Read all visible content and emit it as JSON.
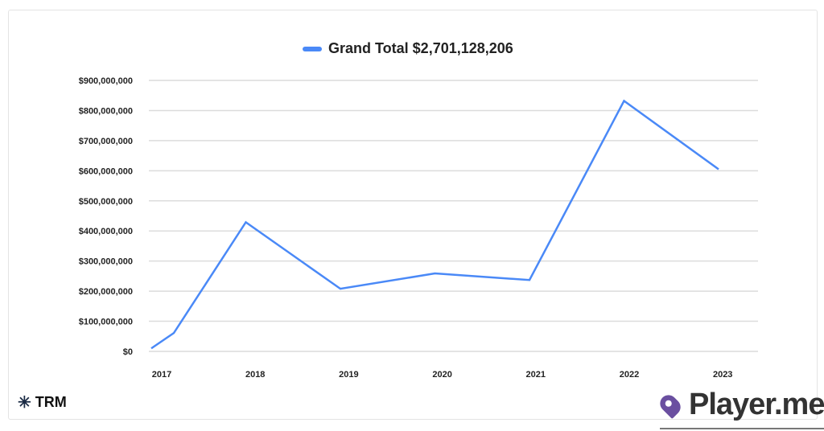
{
  "chart_data": {
    "type": "line",
    "legend": {
      "label": "Grand Total $2,701,128,206",
      "color": "#4a89f7",
      "position": "top"
    },
    "x_tick_labels": [
      "2017",
      "2018",
      "2019",
      "2020",
      "2021",
      "2022",
      "2023"
    ],
    "y_tick_labels": [
      "$0",
      "$100,000,000",
      "$200,000,000",
      "$300,000,000",
      "$400,000,000",
      "$500,000,000",
      "$600,000,000",
      "$700,000,000",
      "$800,000,000",
      "$900,000,000"
    ],
    "ylim": [
      0,
      900000000
    ],
    "grid": true,
    "series": [
      {
        "name": "Grand Total $2,701,128,206",
        "x": [
          2017,
          2017.25,
          2018,
          2019,
          2020,
          2021,
          2022,
          2023
        ],
        "values": [
          10000000,
          61000000,
          429000000,
          208000000,
          259000000,
          237000000,
          832000000,
          605000000
        ]
      }
    ]
  },
  "brand": {
    "trm": "TRM",
    "watermark": "Player.me"
  }
}
